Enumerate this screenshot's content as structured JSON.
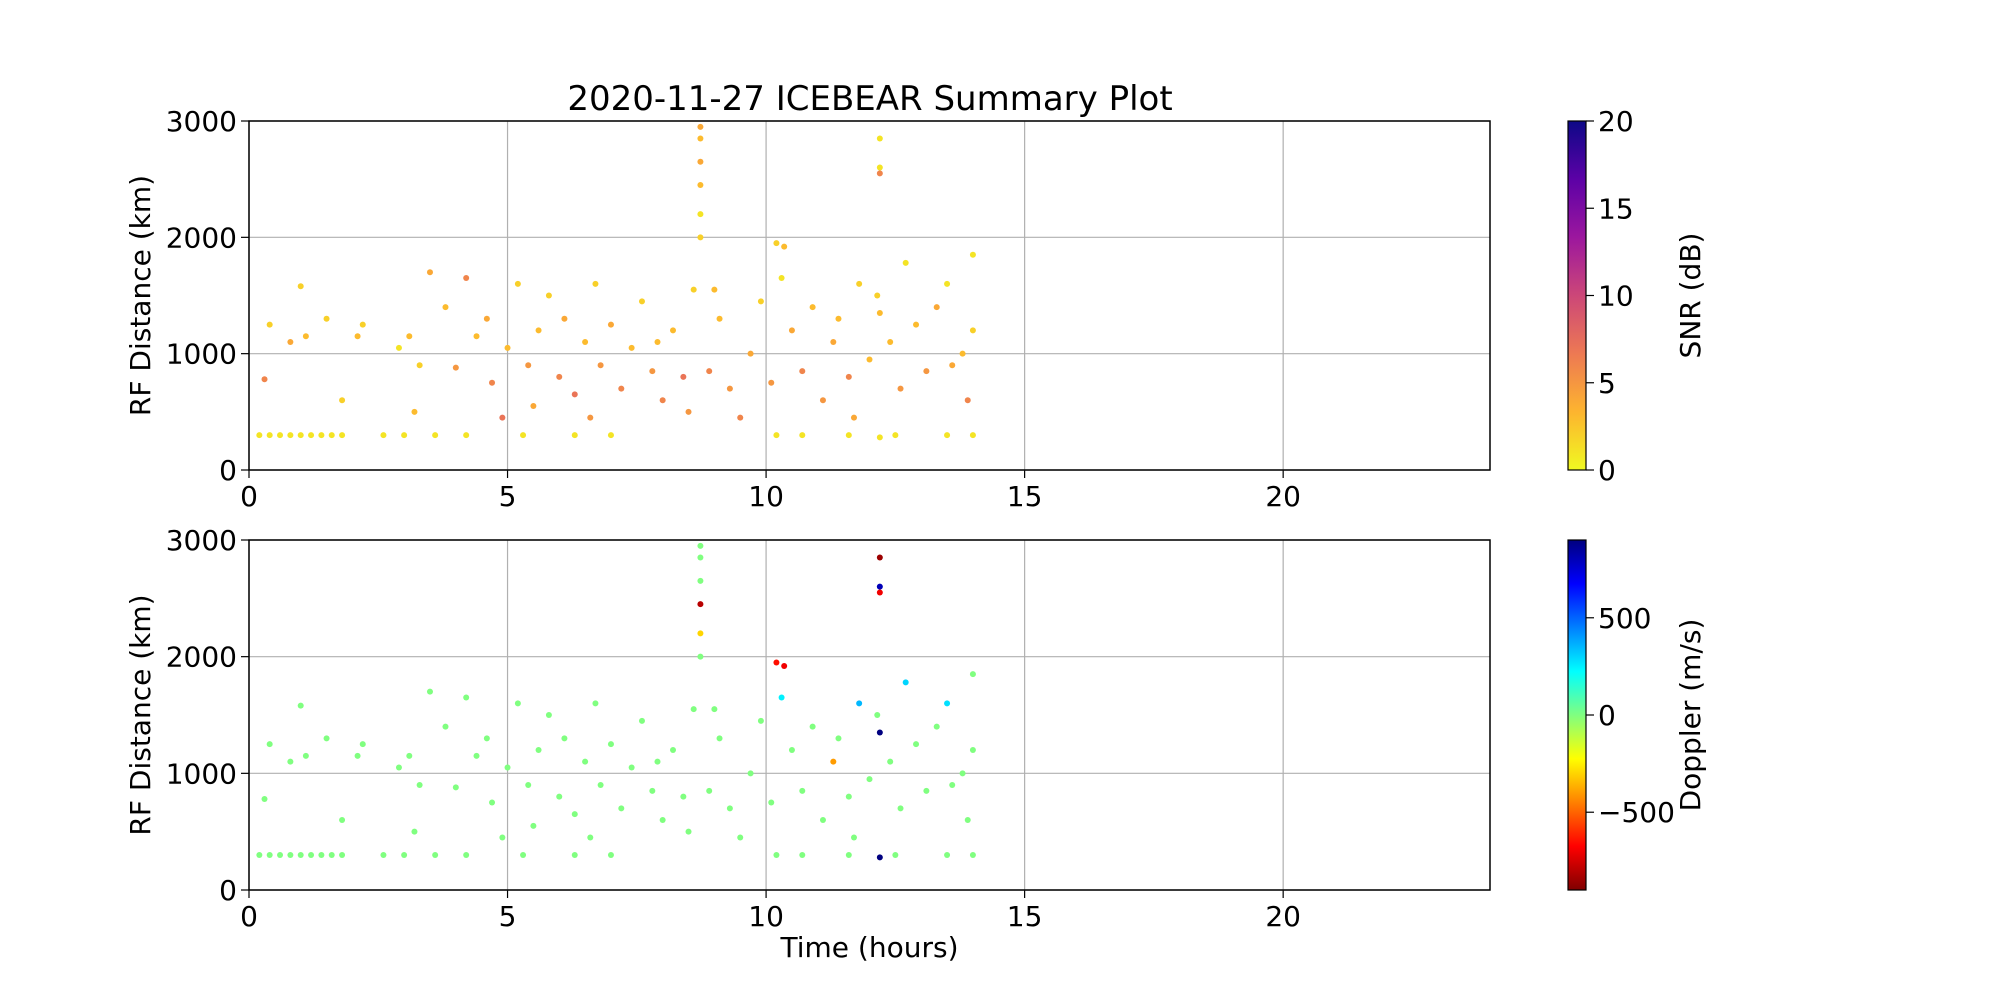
{
  "chart_data": [
    {
      "type": "scatter",
      "title": "2020-11-27 ICEBEAR Summary Plot",
      "ylabel": "RF Distance (km)",
      "xlim": [
        0,
        24
      ],
      "ylim": [
        0,
        3000
      ],
      "xticks": [
        0,
        5,
        10,
        15,
        20
      ],
      "yticks": [
        0,
        1000,
        2000,
        3000
      ],
      "grid": true,
      "x": [
        0.2,
        0.4,
        0.6,
        0.8,
        1.0,
        1.2,
        1.4,
        1.6,
        1.8,
        2.6,
        3.0,
        3.6,
        4.2,
        5.3,
        6.3,
        7.0,
        10.2,
        10.7,
        11.6,
        12.5,
        13.5,
        14.0,
        0.3,
        0.4,
        0.8,
        1.0,
        1.1,
        1.5,
        1.8,
        2.1,
        2.2,
        2.9,
        3.1,
        3.3,
        3.5,
        3.8,
        4.0,
        4.2,
        4.4,
        4.6,
        4.7,
        4.9,
        5.0,
        5.2,
        5.4,
        5.6,
        5.8,
        6.0,
        6.1,
        6.3,
        6.5,
        6.7,
        6.8,
        7.0,
        7.2,
        7.4,
        7.6,
        7.8,
        8.0,
        8.2,
        8.4,
        8.5,
        8.6,
        8.73,
        8.73,
        8.73,
        8.73,
        8.73,
        8.73,
        8.9,
        9.1,
        9.3,
        9.5,
        9.7,
        9.9,
        10.1,
        10.2,
        10.3,
        10.35,
        10.5,
        10.7,
        10.9,
        11.1,
        11.3,
        11.4,
        11.6,
        11.8,
        12.0,
        12.15,
        12.2,
        12.2,
        12.2,
        12.2,
        12.2,
        12.4,
        12.6,
        12.7,
        12.9,
        13.1,
        13.3,
        13.5,
        13.6,
        13.8,
        14.0,
        14.0,
        13.9,
        11.7,
        9.0,
        7.9,
        6.6,
        5.5,
        3.2
      ],
      "y": [
        300,
        300,
        300,
        300,
        300,
        300,
        300,
        300,
        300,
        300,
        300,
        300,
        300,
        300,
        300,
        300,
        300,
        300,
        300,
        300,
        300,
        300,
        780,
        1250,
        1100,
        1580,
        1150,
        1300,
        600,
        1150,
        1250,
        1050,
        1150,
        900,
        1700,
        1400,
        880,
        1650,
        1150,
        1300,
        750,
        450,
        1050,
        1600,
        900,
        1200,
        1500,
        800,
        1300,
        650,
        1100,
        1600,
        900,
        1250,
        700,
        1050,
        1450,
        850,
        600,
        1200,
        800,
        500,
        1550,
        2000,
        2200,
        2450,
        2650,
        2850,
        2950,
        850,
        1300,
        700,
        450,
        1000,
        1450,
        750,
        1950,
        1650,
        1920,
        1200,
        850,
        1400,
        600,
        1100,
        1300,
        800,
        1600,
        950,
        1500,
        2850,
        2600,
        2550,
        1350,
        280,
        1100,
        700,
        1780,
        1250,
        850,
        1400,
        1600,
        900,
        1000,
        1200,
        1850,
        600,
        450,
        1550,
        1100,
        450,
        550,
        500
      ],
      "c": [
        1,
        1,
        1,
        1,
        1,
        1,
        1,
        1,
        1,
        1,
        1,
        1,
        1,
        1,
        1,
        1,
        1,
        1,
        1,
        1,
        1,
        1,
        6,
        2,
        4,
        2,
        3,
        2,
        2,
        3,
        2,
        1,
        3,
        2,
        4,
        3,
        5,
        6,
        3,
        4,
        6,
        7,
        3,
        2,
        5,
        3,
        2,
        6,
        4,
        7,
        3,
        2,
        5,
        4,
        6,
        3,
        2,
        5,
        6,
        3,
        7,
        5,
        2,
        2,
        1,
        3,
        4,
        3,
        4,
        6,
        3,
        5,
        6,
        4,
        2,
        5,
        2,
        1,
        3,
        4,
        6,
        3,
        5,
        4,
        3,
        6,
        2,
        3,
        2,
        1,
        1,
        6,
        3,
        1,
        3,
        5,
        1,
        3,
        5,
        4,
        1,
        4,
        3,
        2,
        1,
        6,
        4,
        3,
        3,
        5,
        4,
        3
      ],
      "colorbar": {
        "label": "SNR (dB)",
        "lim": [
          0,
          20
        ],
        "ticks": [
          0,
          5,
          10,
          15,
          20
        ],
        "colormap": [
          "#f0f921",
          "#fdb42f",
          "#ed7953",
          "#cc4778",
          "#9c179e",
          "#5c01a6",
          "#0d0887"
        ]
      }
    },
    {
      "type": "scatter",
      "ylabel": "RF Distance (km)",
      "xlabel": "Time (hours)",
      "xlim": [
        0,
        24
      ],
      "ylim": [
        0,
        3000
      ],
      "xticks": [
        0,
        5,
        10,
        15,
        20
      ],
      "yticks": [
        0,
        1000,
        2000,
        3000
      ],
      "grid": true,
      "x": [
        0.2,
        0.4,
        0.6,
        0.8,
        1.0,
        1.2,
        1.4,
        1.6,
        1.8,
        2.6,
        3.0,
        3.6,
        4.2,
        5.3,
        6.3,
        7.0,
        10.2,
        10.7,
        11.6,
        12.5,
        13.5,
        14.0,
        0.3,
        0.4,
        0.8,
        1.0,
        1.1,
        1.5,
        1.8,
        2.1,
        2.2,
        2.9,
        3.1,
        3.3,
        3.5,
        3.8,
        4.0,
        4.2,
        4.4,
        4.6,
        4.7,
        4.9,
        5.0,
        5.2,
        5.4,
        5.6,
        5.8,
        6.0,
        6.1,
        6.3,
        6.5,
        6.7,
        6.8,
        7.0,
        7.2,
        7.4,
        7.6,
        7.8,
        8.0,
        8.2,
        8.4,
        8.5,
        8.6,
        8.73,
        8.73,
        8.73,
        8.73,
        8.73,
        8.73,
        8.9,
        9.1,
        9.3,
        9.5,
        9.7,
        9.9,
        10.1,
        10.2,
        10.3,
        10.35,
        10.5,
        10.7,
        10.9,
        11.1,
        11.3,
        11.4,
        11.6,
        11.8,
        12.0,
        12.15,
        12.2,
        12.2,
        12.2,
        12.2,
        12.2,
        12.4,
        12.6,
        12.7,
        12.9,
        13.1,
        13.3,
        13.5,
        13.6,
        13.8,
        14.0,
        14.0,
        13.9,
        11.7,
        9.0,
        7.9,
        6.6,
        5.5,
        3.2
      ],
      "y": [
        300,
        300,
        300,
        300,
        300,
        300,
        300,
        300,
        300,
        300,
        300,
        300,
        300,
        300,
        300,
        300,
        300,
        300,
        300,
        300,
        300,
        300,
        780,
        1250,
        1100,
        1580,
        1150,
        1300,
        600,
        1150,
        1250,
        1050,
        1150,
        900,
        1700,
        1400,
        880,
        1650,
        1150,
        1300,
        750,
        450,
        1050,
        1600,
        900,
        1200,
        1500,
        800,
        1300,
        650,
        1100,
        1600,
        900,
        1250,
        700,
        1050,
        1450,
        850,
        600,
        1200,
        800,
        500,
        1550,
        2000,
        2200,
        2450,
        2650,
        2850,
        2950,
        850,
        1300,
        700,
        450,
        1000,
        1450,
        750,
        1950,
        1650,
        1920,
        1200,
        850,
        1400,
        600,
        1100,
        1300,
        800,
        1600,
        950,
        1500,
        2850,
        2600,
        2550,
        1350,
        280,
        1100,
        700,
        1780,
        1250,
        850,
        1400,
        1600,
        900,
        1000,
        1200,
        1850,
        600,
        450,
        1550,
        1100,
        450,
        550,
        500
      ],
      "c": [
        0,
        0,
        0,
        0,
        0,
        0,
        0,
        0,
        0,
        0,
        0,
        0,
        0,
        0,
        0,
        0,
        0,
        0,
        0,
        0,
        0,
        0,
        0,
        0,
        0,
        0,
        0,
        0,
        0,
        0,
        0,
        0,
        0,
        0,
        0,
        0,
        0,
        0,
        0,
        0,
        0,
        0,
        0,
        0,
        0,
        0,
        0,
        0,
        0,
        0,
        0,
        0,
        0,
        0,
        0,
        0,
        0,
        0,
        0,
        0,
        0,
        0,
        0,
        0,
        -300,
        -800,
        0,
        0,
        0,
        0,
        0,
        0,
        0,
        0,
        0,
        0,
        -650,
        250,
        -700,
        0,
        0,
        0,
        0,
        -400,
        0,
        0,
        350,
        0,
        0,
        -850,
        800,
        -700,
        900,
        900,
        0,
        0,
        300,
        0,
        0,
        0,
        280,
        0,
        0,
        0,
        0,
        0,
        0,
        0,
        0,
        0,
        0,
        0
      ],
      "colorbar": {
        "label": "Doppler (m/s)",
        "lim": [
          -900,
          900
        ],
        "ticks": [
          {
            "value": -500,
            "label": "−500"
          },
          0,
          500
        ],
        "colormap": [
          "#800000",
          "#ff0000",
          "#ff8000",
          "#ffff00",
          "#80ff80",
          "#00ffff",
          "#0080ff",
          "#0000ff",
          "#000080"
        ]
      }
    }
  ]
}
